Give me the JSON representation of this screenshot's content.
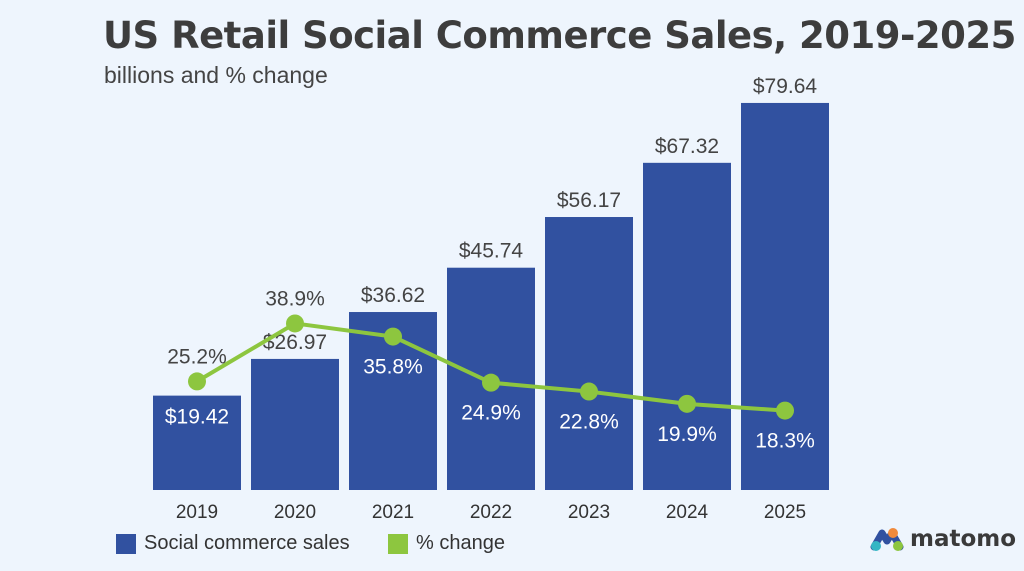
{
  "chart_data": {
    "type": "bar",
    "title": "US Retail Social Commerce Sales, 2019-2025",
    "subtitle": "billions and % change",
    "categories": [
      "2019",
      "2020",
      "2021",
      "2022",
      "2023",
      "2024",
      "2025"
    ],
    "series": [
      {
        "name": "Social commerce sales",
        "type": "bar",
        "values": [
          19.42,
          26.97,
          36.62,
          45.74,
          56.17,
          67.32,
          79.64
        ],
        "labels": [
          "$19.42",
          "$26.97",
          "$36.62",
          "$45.74",
          "$56.17",
          "$67.32",
          "$79.64"
        ],
        "color": "#3151a0"
      },
      {
        "name": "% change",
        "type": "line",
        "values": [
          25.2,
          38.9,
          35.8,
          24.9,
          22.8,
          19.9,
          18.3
        ],
        "labels": [
          "25.2%",
          "38.9%",
          "35.8%",
          "24.9%",
          "22.8%",
          "19.9%",
          "18.3%"
        ],
        "color": "#8dc63f"
      }
    ],
    "grid": false,
    "legend": "bottom-left"
  },
  "brand": {
    "logo_text": "matomo"
  }
}
